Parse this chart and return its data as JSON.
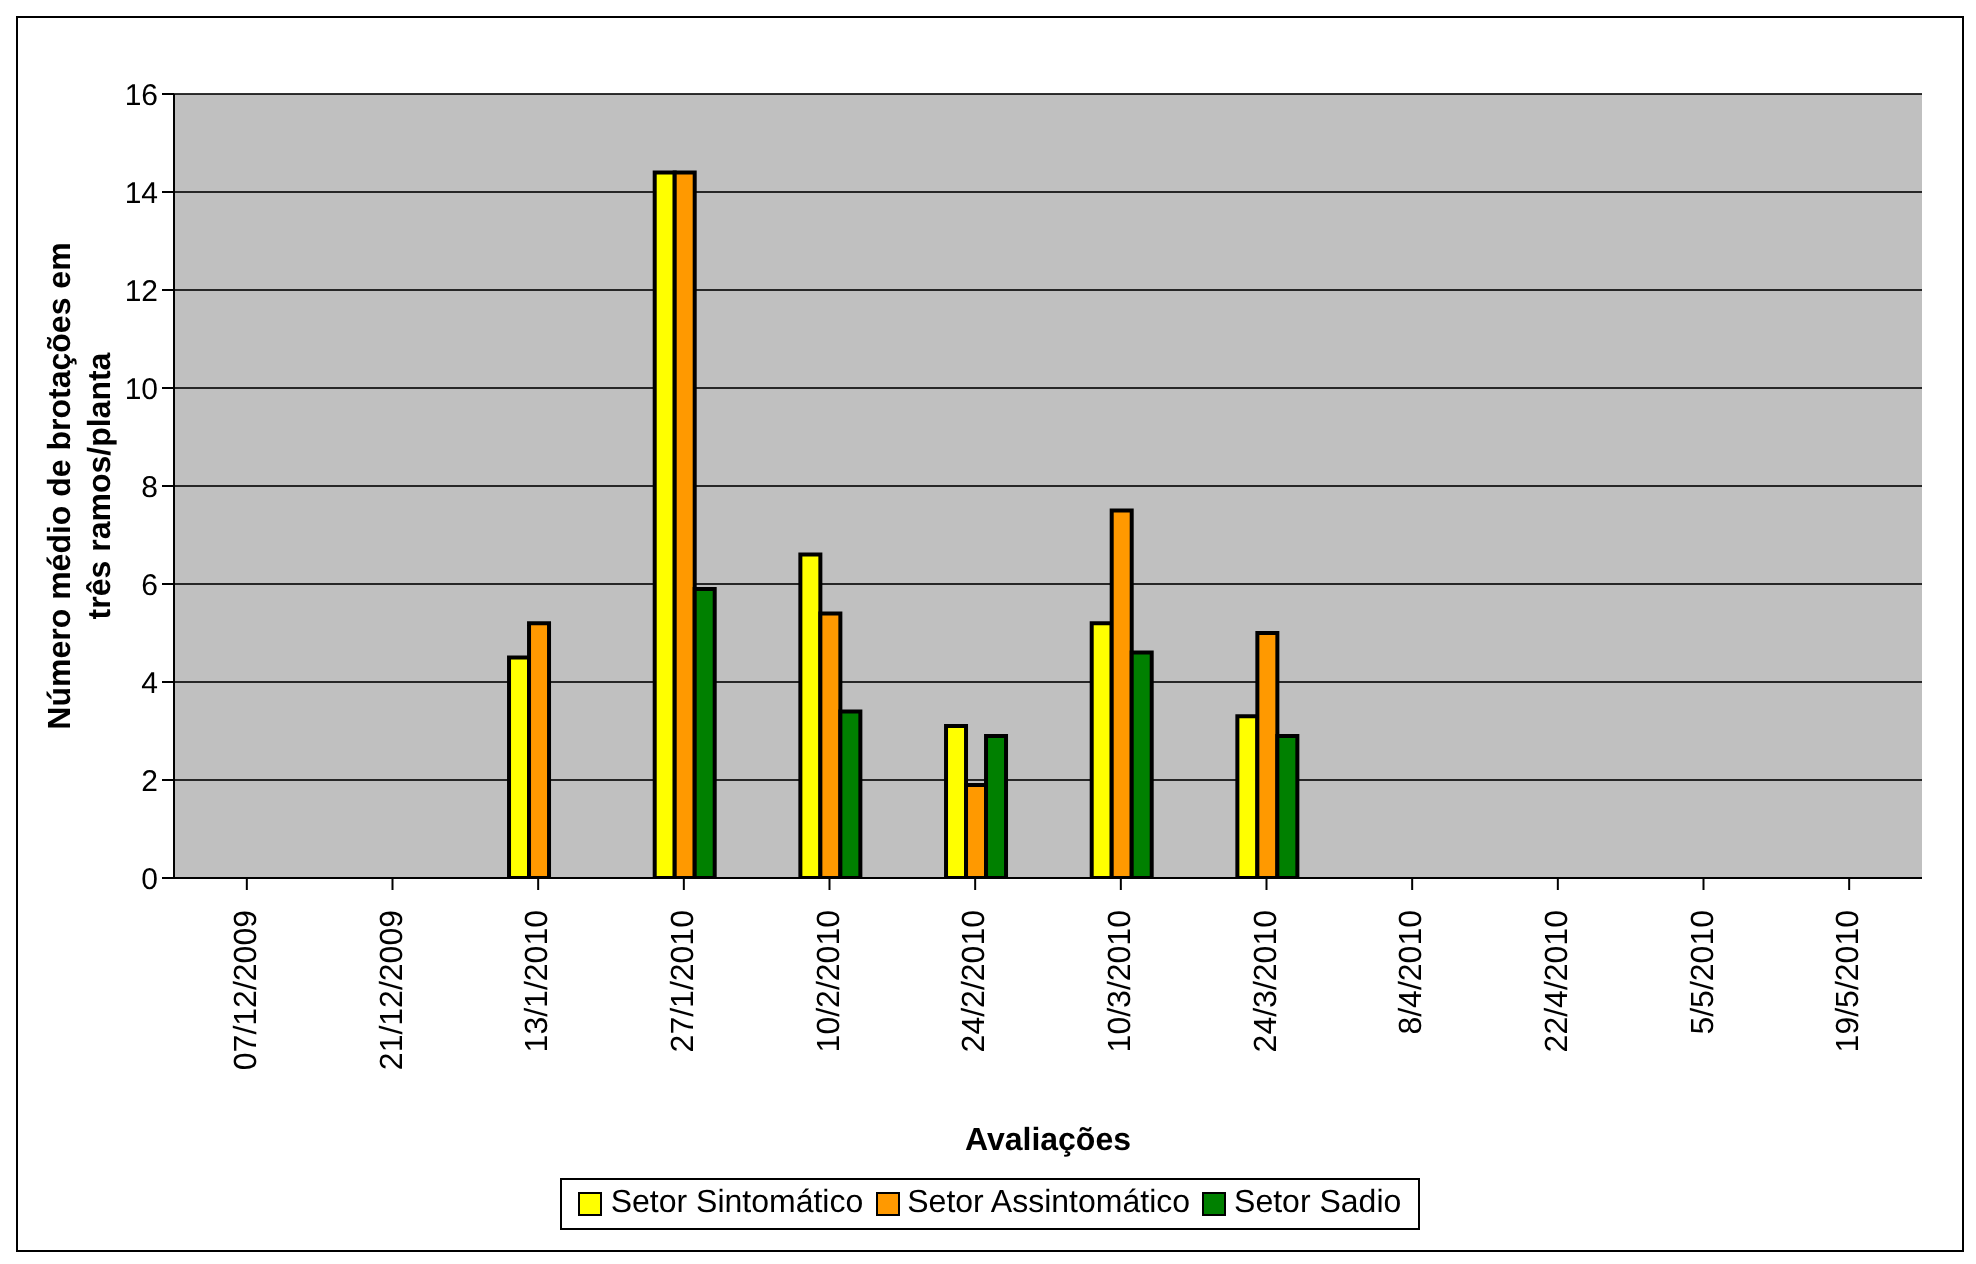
{
  "chart_data": {
    "type": "bar",
    "xlabel": "Avaliações",
    "ylabel": "Número médio de brotações em três ramos/planta",
    "categories": [
      "07/12/2009",
      "21/12/2009",
      "13/1/2010",
      "27/1/2010",
      "10/2/2010",
      "24/2/2010",
      "10/3/2010",
      "24/3/2010",
      "8/4/2010",
      "22/4/2010",
      "5/5/2010",
      "19/5/2010"
    ],
    "series": [
      {
        "name": "Setor Sintomático",
        "color": "#ffff00",
        "values": [
          null,
          null,
          4.5,
          14.4,
          6.6,
          3.1,
          5.2,
          3.3,
          null,
          null,
          null,
          null
        ]
      },
      {
        "name": "Setor Assintomático",
        "color": "#ff9900",
        "values": [
          null,
          null,
          5.2,
          14.4,
          5.4,
          1.9,
          7.5,
          5.0,
          null,
          null,
          null,
          null
        ]
      },
      {
        "name": "Setor Sadio",
        "color": "#008000",
        "values": [
          null,
          null,
          null,
          5.9,
          3.4,
          2.9,
          4.6,
          2.9,
          null,
          null,
          null,
          null
        ]
      }
    ],
    "ylim": [
      0,
      16
    ],
    "yticks": [
      0,
      2,
      4,
      6,
      8,
      10,
      12,
      14,
      16
    ],
    "grid": "y",
    "legend": "bottom"
  }
}
